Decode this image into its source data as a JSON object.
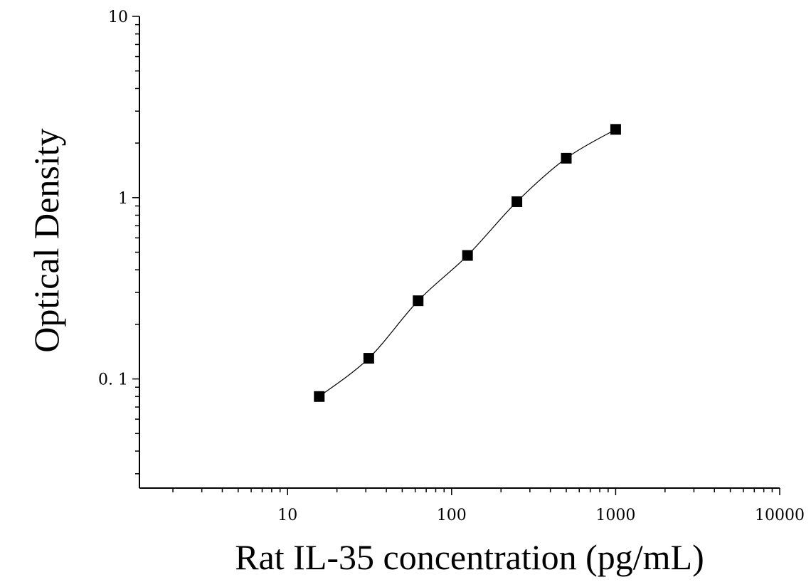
{
  "chart_data": {
    "type": "scatter",
    "title": "",
    "xlabel": "Rat IL-35 concentration (pg/mL)",
    "ylabel": "Optical Density",
    "x_scale": "log",
    "y_scale": "log",
    "xlim": [
      1.25,
      10000
    ],
    "ylim": [
      0.025,
      10
    ],
    "x_tick_labels": [
      "10",
      "100",
      "1000",
      "10000"
    ],
    "y_tick_labels": [
      "10",
      "1",
      "0. 1"
    ],
    "grid": false,
    "legend": "none",
    "marker": "square",
    "marker_color": "#000000",
    "series": [
      {
        "x": [
          15.6,
          31.25,
          62.5,
          125,
          250,
          500,
          1000
        ],
        "y": [
          0.08,
          0.13,
          0.27,
          0.48,
          0.95,
          1.65,
          2.38
        ]
      }
    ],
    "fit_curve": {
      "type": "4PL",
      "x_range": [
        15.6,
        1000
      ]
    }
  }
}
